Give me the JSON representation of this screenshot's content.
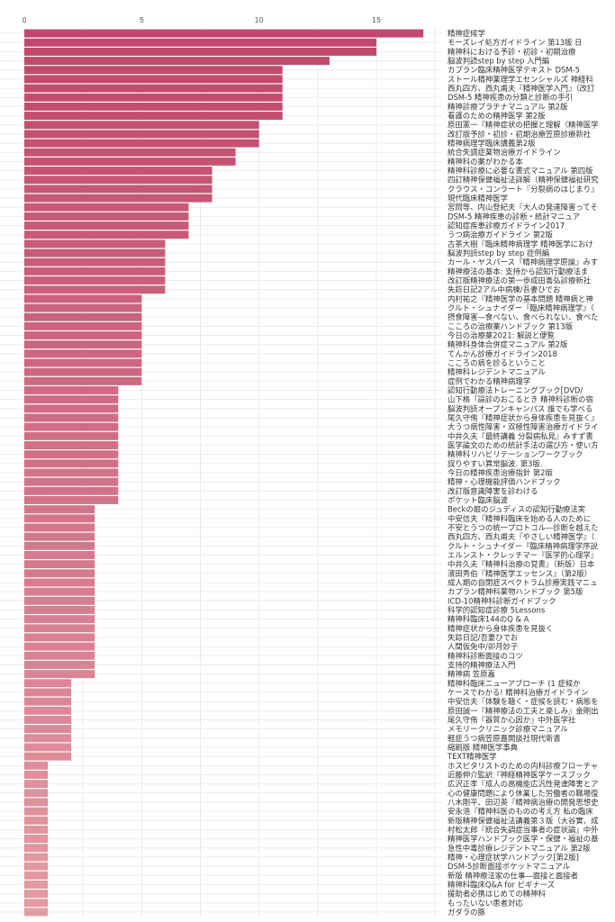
{
  "chart_data": {
    "type": "bar",
    "orientation": "horizontal",
    "title": "",
    "xlabel": "",
    "ylabel": "",
    "xlim": [
      0,
      18
    ],
    "xticks": [
      0,
      5,
      10,
      15
    ],
    "grid": true,
    "colors": {
      "top": "#c0476d",
      "bottom": "#e39ca3"
    },
    "categories": [
      "精神症候学",
      "モーズレイ処方ガイドライン 第13版 日",
      "精神科における予診・初診・初期治療",
      "脳波判読step by step 入門編",
      "カプラン臨床精神医学テキスト DSM-5",
      "ストール精神薬理学エセンシャルズ 神経科",
      "西丸四方、西丸甫夫『精神医学入門』（改訂",
      "DSM-5 精神疾患の分類と診断の手引",
      "精神診療プラチナマニュアル 第2版",
      "看護のための精神医学 第2版",
      "原田憲一『精神症状の把握と理解（精神医学",
      "改訂版予診・初診・初期治療笠原診療新社",
      "精神病理学臨床講義第2版",
      "統合失調症薬物治療ガイドライン",
      "精神科の薬がわかる本",
      "精神科診療に必要な書式マニュアル 第四版",
      "四訂精神保健福祉法詳解（精神保健福祉研究",
      "クラウス・コンラート『分裂病のはじまり』",
      "現代臨床精神医学",
      "宮岡等、内山登紀夫『大人の発達障害ってそ",
      "DSM-5 精神疾患の診断・統計マニュア",
      "認知症疾患診療ガイドライン2017",
      "うつ病治療ガイドライン 第2版",
      "古茶大樹『臨床精神病理学 精神医学におけ",
      "脳波判読step by step 症例編",
      "カール・ヤスパース『精神病理学原論』みす",
      "精神療法の基本: 支持から認知行動療法ま",
      "改訂版精神療法の第一歩成田善弘診療新社",
      "失踪日記2アル中病棟/吾妻ひでお",
      "内村祐之『精神医学の基本問題 精神病と神",
      "クルト・シュナイダー『臨床精神病理学』（",
      "摂食障害―食べない、食べられない、食べた",
      "こころの治療薬ハンドブック 第13版",
      "今日の治療薬2021: 解説と便覧",
      "精神科身体合併症マニュアル 第2版",
      "てんかん診療ガイドライン2018",
      "こころの病を診るということ",
      "精神科レジデントマニュアル",
      "症例でわかる精神病理学",
      "認知行動療法トレーニングブック[DVD/",
      "山下格『誤診のおこるとき 精神科診断の宿",
      "脳波判読オープンキャンパス 誰でも学べる",
      "尾久守侑『精神症状から身体疾患を見抜く』",
      "大うつ病性障害・双極性障害治療ガイドライ",
      "中井久夫『最終講義 分裂病私見』みすず書",
      "医学論文のための統計手法の選び方・使い方",
      "精神科リハビリテーションワークブック",
      "誤りやすい異常脳波. 第3版.",
      "今日の精神疾患治療指針 第2版",
      "精神・心理機能評価ハンドブック",
      "改訂版意識障害を診わける",
      "ポケット臨床脳波",
      "Beckの娘のジュディスの認知行動療法実",
      "中安信夫『精神科臨床を始める人のために",
      "不安とうつの統一プロトコル―診断を越えた",
      "西丸四方、西丸甫夫『やさしい精神医学』（",
      "クルト・シュナイダー『臨床精神病理学序説",
      "エルンスト・クレッチマー『医学的心理学』",
      "中井久夫『精神科治療の覚書』（新版）日本",
      "濱田秀伯『精神医学エッセンス』（第2版）",
      "成人期の自閉症スペクトラム診療実践マニュ",
      "カプラン精神科薬物ハンドブック 第5版",
      "ICD-10精神科診断ガイドブック",
      "科学的認知症診療 5Lessons",
      "精神科臨床144のQ & A",
      "精神症状から身体疾患を見抜く",
      "失踪日記/吾妻ひでお",
      "人間仮免中/卯月妙子",
      "精神科診断面接のコツ",
      "支持的精神療法入門",
      "精神病 笠原嘉",
      "精神科臨床ニューアプローチ (1 症候か",
      "ケースでわかる! 精神科治療ガイドライン",
      "中安信夫『体験を聴く・症候を読む・病態を",
      "原田誠一『精神療法の工夫と楽しみ』金剛出",
      "尾久守侑『器質か心因か』中外医学社",
      "メモリークリニック診療マニュアル",
      "軽症うつ病笠原嘉開談社現代新書",
      "縮刷版 精神医学事典",
      "TEXT精神医学",
      "ホスピタリストのための内科診療フローチャ",
      "近藤伸介監訳『神経精神医学ケースブック",
      "広沢正孝『成人の高機能広汎性発達障害とア",
      "心の健康問題により休業した労働者の職場復",
      "八木剛平、田辺英『精神病治療の開発思想史",
      "安永浩『精神科医のものの考え方 私の臨床",
      "新版精神保健福祉法講義第３版（大谷實、成",
      "村松太郎『統合失調症当事者の症状論』中外",
      "精神医学ハンドブック医学・保健・福祉の基",
      "急性中毒診療レジデントマニュアル 第2版",
      "精神・心理症状学ハンドブック[第2版]",
      "DSM-5診断面接ポケットマニュアル",
      "新版 精神療法家の仕事―面接と面接者",
      "精神科臨床Q&A for ビギナーズ",
      "援助者必携はじめての精神科",
      "もったいない患者対応",
      "ガダラの豚"
    ],
    "values": [
      17,
      15,
      15,
      13,
      11,
      11,
      11,
      11,
      11,
      11,
      10,
      10,
      10,
      9,
      9,
      8,
      8,
      8,
      8,
      7,
      7,
      7,
      7,
      6,
      6,
      6,
      6,
      6,
      6,
      5,
      5,
      5,
      5,
      5,
      5,
      5,
      5,
      5,
      5,
      4,
      4,
      4,
      4,
      4,
      4,
      4,
      4,
      4,
      4,
      4,
      4,
      4,
      3,
      3,
      3,
      3,
      3,
      3,
      3,
      3,
      3,
      3,
      3,
      3,
      3,
      3,
      3,
      3,
      3,
      3,
      3,
      2,
      2,
      2,
      2,
      2,
      2,
      2,
      2,
      2,
      1,
      1,
      1,
      1,
      1,
      1,
      1,
      1,
      1,
      1,
      1,
      1,
      1,
      1,
      1,
      1,
      1
    ]
  }
}
